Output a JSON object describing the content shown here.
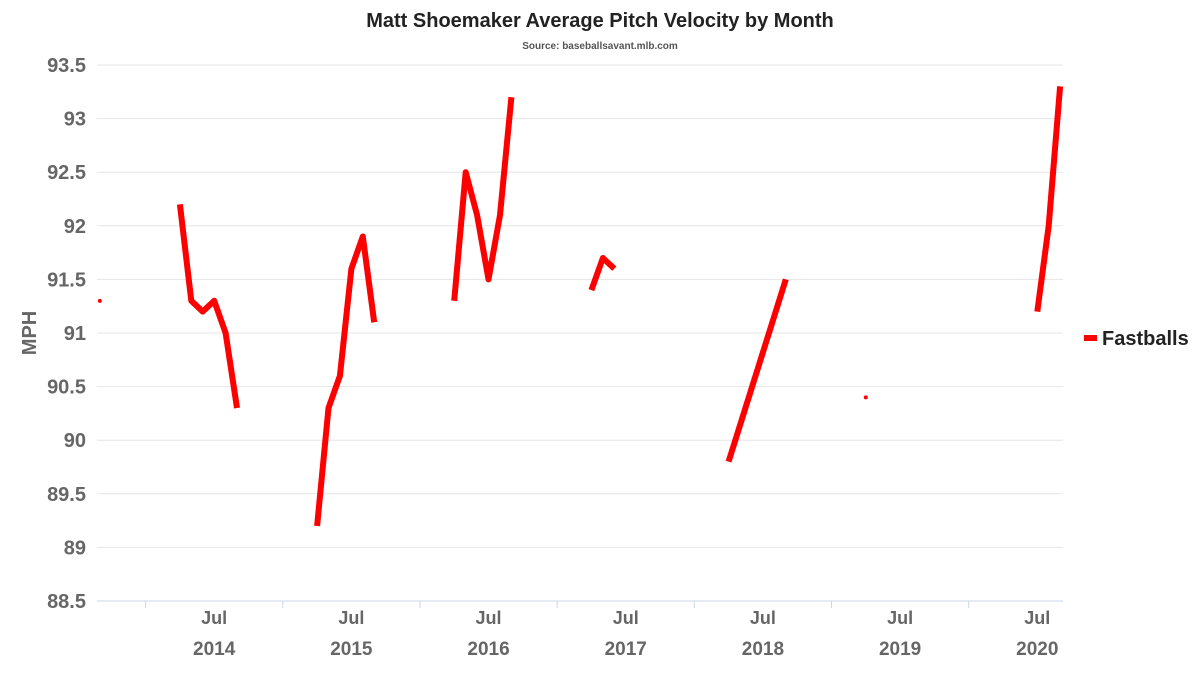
{
  "chart_data": {
    "type": "line",
    "title": "Matt Shoemaker Average Pitch Velocity by Month",
    "subtitle": "Source: baseballsavant.mlb.com",
    "ylabel": "MPH",
    "xlabel": "",
    "ylim": [
      88.5,
      93.5
    ],
    "yticks": [
      88.5,
      89,
      89.5,
      90,
      90.5,
      91,
      91.5,
      92,
      92.5,
      93,
      93.5
    ],
    "xlim": [
      "2013-09",
      "2020-09"
    ],
    "xticks": [
      {
        "month": "Jul",
        "year": "2014",
        "date": "2014-07"
      },
      {
        "month": "Jul",
        "year": "2015",
        "date": "2015-07"
      },
      {
        "month": "Jul",
        "year": "2016",
        "date": "2016-07"
      },
      {
        "month": "Jul",
        "year": "2017",
        "date": "2017-07"
      },
      {
        "month": "Jul",
        "year": "2018",
        "date": "2018-07"
      },
      {
        "month": "Jul",
        "year": "2019",
        "date": "2019-07"
      },
      {
        "month": "Jul",
        "year": "2020",
        "date": "2020-07"
      }
    ],
    "grid": true,
    "legend_position": "right",
    "series": [
      {
        "name": "Fastballs",
        "color": "#ff0000",
        "segments": [
          [
            [
              "2013-09",
              91.3
            ]
          ],
          [
            [
              "2014-04",
              92.2
            ],
            [
              "2014-05",
              91.3
            ],
            [
              "2014-06",
              91.2
            ],
            [
              "2014-07",
              91.3
            ],
            [
              "2014-08",
              91.0
            ],
            [
              "2014-09",
              90.3
            ]
          ],
          [
            [
              "2015-04",
              89.2
            ],
            [
              "2015-05",
              90.3
            ],
            [
              "2015-06",
              90.6
            ],
            [
              "2015-07",
              91.6
            ],
            [
              "2015-08",
              91.9
            ],
            [
              "2015-09",
              91.1
            ]
          ],
          [
            [
              "2016-04",
              91.3
            ],
            [
              "2016-05",
              92.5
            ],
            [
              "2016-06",
              92.1
            ],
            [
              "2016-07",
              91.5
            ],
            [
              "2016-08",
              92.1
            ],
            [
              "2016-09",
              93.2
            ]
          ],
          [
            [
              "2017-04",
              91.4
            ],
            [
              "2017-05",
              91.7
            ],
            [
              "2017-06",
              91.6
            ]
          ],
          [
            [
              "2018-04",
              89.8
            ],
            [
              "2018-09",
              91.5
            ]
          ],
          [
            [
              "2019-04",
              90.4
            ]
          ],
          [
            [
              "2020-07",
              91.2
            ],
            [
              "2020-08",
              92.0
            ],
            [
              "2020-09",
              93.3
            ]
          ]
        ]
      }
    ]
  }
}
